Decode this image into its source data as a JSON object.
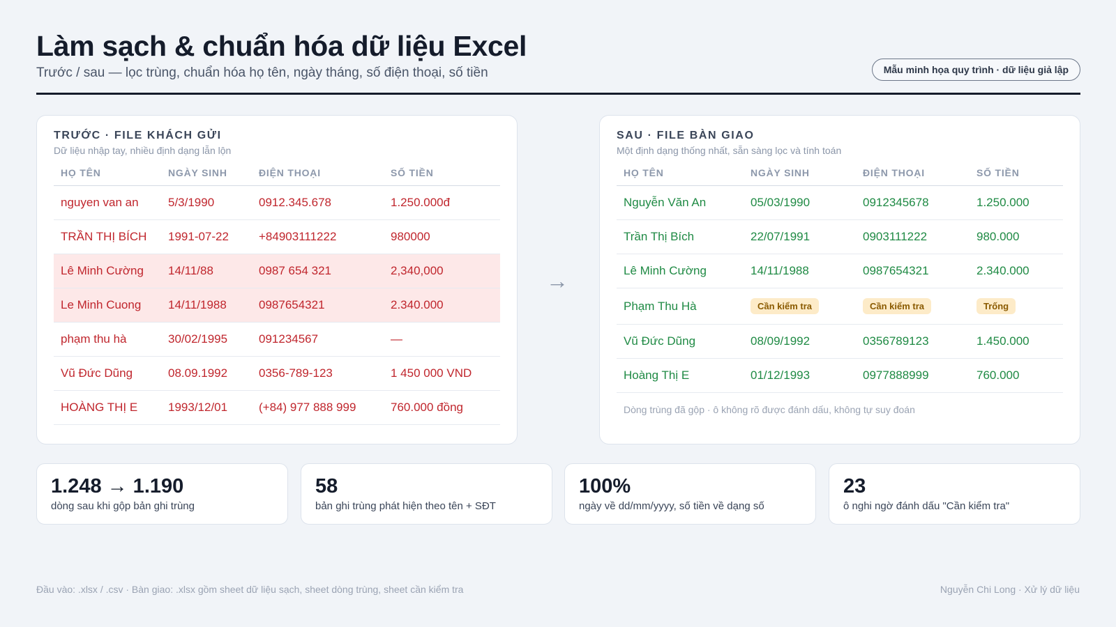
{
  "header": {
    "title": "Làm sạch & chuẩn hóa dữ liệu Excel",
    "subtitle": "Trước / sau — lọc trùng, chuẩn hóa họ tên, ngày tháng, số điện thoại, số tiền",
    "badge": "Mẫu minh họa quy trình · dữ liệu giả lập"
  },
  "before": {
    "title": "TRƯỚC · FILE KHÁCH GỬI",
    "subtitle": "Dữ liệu nhập tay, nhiều định dạng lẫn lộn",
    "columns": [
      "HỌ TÊN",
      "NGÀY SINH",
      "ĐIỆN THOẠI",
      "SỐ TIỀN"
    ],
    "rows": [
      [
        "nguyen van an",
        "5/3/1990",
        "0912.345.678",
        "1.250.000đ"
      ],
      [
        "TRẦN THỊ BÍCH",
        "1991-07-22",
        "+84903111222",
        "980000"
      ],
      [
        "Lê Minh Cường",
        "14/11/88",
        "0987 654 321",
        "2,340,000"
      ],
      [
        "Le Minh Cuong",
        "14/11/1988",
        "0987654321",
        "2.340.000"
      ],
      [
        "phạm thu hà",
        "30/02/1995",
        "091234567",
        "—"
      ],
      [
        "Vũ Đức Dũng",
        "08.09.1992",
        "0356-789-123",
        "1 450 000 VND"
      ],
      [
        "HOÀNG THỊ E",
        "1993/12/01",
        "(+84) 977 888 999",
        "760.000 đồng"
      ]
    ]
  },
  "after": {
    "title": "SAU · FILE BÀN GIAO",
    "subtitle": "Một định dạng thống nhất, sẵn sàng lọc và tính toán",
    "columns": [
      "HỌ TÊN",
      "NGÀY SINH",
      "ĐIỆN THOẠI",
      "SỐ TIỀN"
    ],
    "rows": [
      [
        "Nguyễn Văn An",
        "05/03/1990",
        "0912345678",
        "1.250.000"
      ],
      [
        "Trần Thị Bích",
        "22/07/1991",
        "0903111222",
        "980.000"
      ],
      [
        "Lê Minh Cường",
        "14/11/1988",
        "0987654321",
        "2.340.000"
      ],
      [
        "Phạm Thu Hà",
        "Cần kiểm tra",
        "Cần kiểm tra",
        "Trống"
      ],
      [
        "Vũ Đức Dũng",
        "08/09/1992",
        "0356789123",
        "1.450.000"
      ],
      [
        "Hoàng Thị E",
        "01/12/1993",
        "0977888999",
        "760.000"
      ]
    ],
    "note": "Dòng trùng đã gộp · ô không rõ được đánh dấu, không tự suy đoán"
  },
  "arrow": "→",
  "stats": [
    {
      "value": "1.248 → 1.190",
      "label": "dòng sau khi gộp bản ghi trùng"
    },
    {
      "value": "58",
      "label": "bản ghi trùng phát hiện theo tên + SĐT"
    },
    {
      "value": "100%",
      "label": "ngày về dd/mm/yyyy, số tiền về dạng số"
    },
    {
      "value": "23",
      "label": "ô nghi ngờ đánh dấu \"Cần kiểm tra\""
    }
  ],
  "footer": {
    "left": "Đầu vào: .xlsx / .csv · Bàn giao: .xlsx gồm sheet dữ liệu sạch, sheet dòng trùng, sheet cần kiểm tra",
    "right": "Nguyễn Chi Long · Xử lý dữ liệu"
  }
}
